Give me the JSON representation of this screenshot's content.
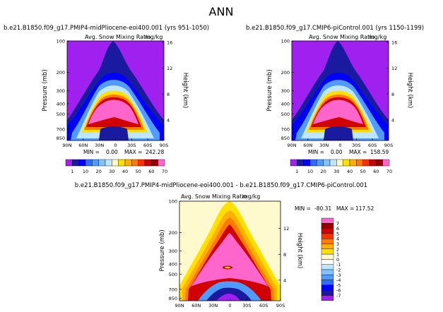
{
  "main_title": "ANN",
  "chart_data": [
    {
      "type": "heatmap",
      "title": "b.e21.B1850.f09_g17.PMIP4-midPliocene-eoi400.001 (yrs 951-1050)",
      "variable": "Avg. Snow Mixing Ratio",
      "units": "mg/kg",
      "ylabel": "Pressure (mb)",
      "ylabel_right": "Height (km)",
      "x_ticks": [
        "90N",
        "60N",
        "30N",
        "0",
        "30S",
        "60S",
        "90S"
      ],
      "y_ticks": [
        "100",
        "200",
        "300",
        "400",
        "500",
        "700",
        "850"
      ],
      "y_right_ticks": [
        "16",
        "12",
        "8",
        "4"
      ],
      "min_label": "MIN =",
      "min_value": "0.00",
      "max_label": "MAX =",
      "max_value": "242.28"
    },
    {
      "type": "heatmap",
      "title": "b.e21.B1850.f09_g17.CMIP6-piControl.001 (yrs 1150-1199)",
      "variable": "Avg. Snow Mixing Ratio",
      "units": "mg/kg",
      "ylabel": "Pressure (mb)",
      "ylabel_right": "Height (km)",
      "x_ticks": [
        "90N",
        "60N",
        "30N",
        "0",
        "30S",
        "60S",
        "90S"
      ],
      "y_ticks": [
        "100",
        "200",
        "300",
        "400",
        "500",
        "700",
        "850"
      ],
      "y_right_ticks": [
        "16",
        "12",
        "8",
        "4"
      ],
      "min_label": "MIN =",
      "min_value": "0.00",
      "max_label": "MAX =",
      "max_value": "158.59"
    },
    {
      "type": "heatmap",
      "title": "b.e21.B1850.f09_g17.PMIP4-midPliocene-eoi400.001 - b.e21.B1850.f09_g17.CMIP6-piControl.001",
      "variable": "Avg. Snow Mixing Ratio",
      "units": "mg/kg",
      "ylabel": "Pressure (mb)",
      "ylabel_right": "Height (km)",
      "x_ticks": [
        "90N",
        "60N",
        "30N",
        "0",
        "30S",
        "60S",
        "90S"
      ],
      "y_ticks": [
        "100",
        "200",
        "300",
        "400",
        "500",
        "700",
        "850"
      ],
      "y_right_ticks": [
        "12",
        "8",
        "4"
      ],
      "min_label": "MIN =",
      "min_value": "-80.31",
      "max_label": "MAX =",
      "max_value": "117.52"
    }
  ],
  "colorbar_abs": {
    "labels": [
      "1",
      "10",
      "20",
      "30",
      "40",
      "50",
      "60",
      "70"
    ],
    "colors": [
      "#a020f0",
      "#1a1aa0",
      "#0000ff",
      "#2d6cff",
      "#4f9bff",
      "#82c3ff",
      "#bfe6ff",
      "#fffacd",
      "#ffe000",
      "#ffb000",
      "#ff7a00",
      "#ff3000",
      "#d00000",
      "#960000",
      "#ff66cc"
    ]
  },
  "colorbar_diff": {
    "labels": [
      "7",
      "6",
      "5",
      "4",
      "3",
      "2",
      "1",
      "0",
      "-1",
      "-2",
      "-3",
      "-4",
      "-5",
      "-6",
      "-7"
    ],
    "colors": [
      "#ff66cc",
      "#960000",
      "#d00000",
      "#ff3000",
      "#ff7a00",
      "#ffb000",
      "#ffe000",
      "#fffacd",
      "#ffffff",
      "#bfe6ff",
      "#82c3ff",
      "#4f9bff",
      "#2d6cff",
      "#0000ff",
      "#1a1aa0",
      "#a020f0"
    ]
  }
}
